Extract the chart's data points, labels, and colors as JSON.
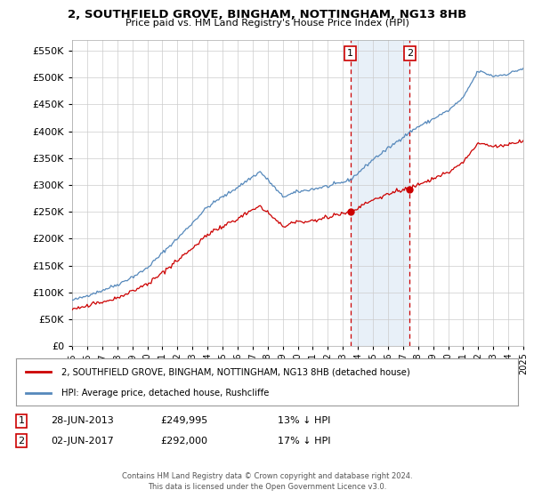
{
  "title": "2, SOUTHFIELD GROVE, BINGHAM, NOTTINGHAM, NG13 8HB",
  "subtitle": "Price paid vs. HM Land Registry's House Price Index (HPI)",
  "legend_line1": "2, SOUTHFIELD GROVE, BINGHAM, NOTTINGHAM, NG13 8HB (detached house)",
  "legend_line2": "HPI: Average price, detached house, Rushcliffe",
  "annotation1_label": "1",
  "annotation1_date": "28-JUN-2013",
  "annotation1_price": "£249,995",
  "annotation1_hpi": "13% ↓ HPI",
  "annotation2_label": "2",
  "annotation2_date": "02-JUN-2017",
  "annotation2_price": "£292,000",
  "annotation2_hpi": "17% ↓ HPI",
  "footer": "Contains HM Land Registry data © Crown copyright and database right 2024.\nThis data is licensed under the Open Government Licence v3.0.",
  "property_color": "#cc0000",
  "hpi_color": "#5588bb",
  "highlight_color": "#e8f0f8",
  "ylim": [
    0,
    570000
  ],
  "yticks": [
    0,
    50000,
    100000,
    150000,
    200000,
    250000,
    300000,
    350000,
    400000,
    450000,
    500000,
    550000
  ],
  "sale1_x": 2013.5,
  "sale1_y": 249995,
  "sale2_x": 2017.45,
  "sale2_y": 292000,
  "xmin": 1995,
  "xmax": 2025
}
